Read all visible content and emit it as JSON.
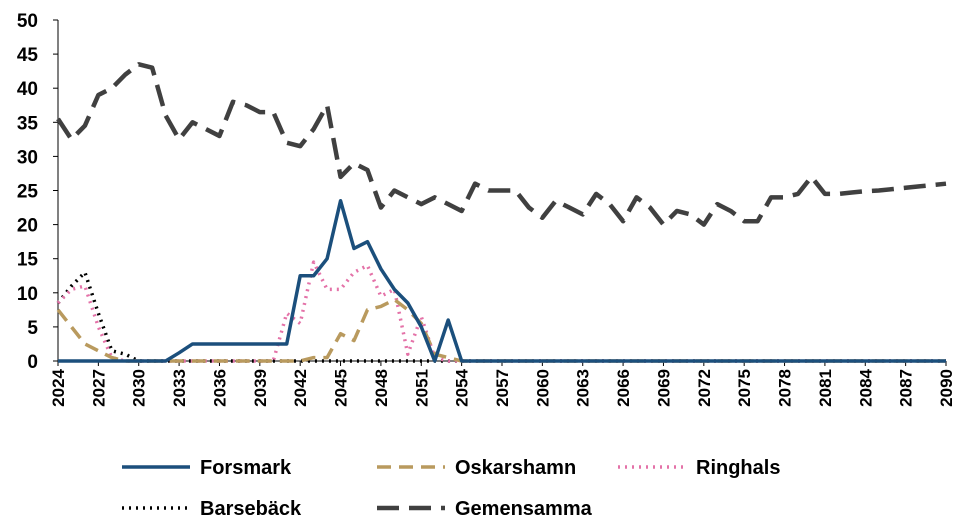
{
  "chart_data": {
    "type": "line",
    "x": [
      2024,
      2025,
      2026,
      2027,
      2028,
      2029,
      2030,
      2031,
      2032,
      2033,
      2034,
      2035,
      2036,
      2037,
      2038,
      2039,
      2040,
      2041,
      2042,
      2043,
      2044,
      2045,
      2046,
      2047,
      2048,
      2049,
      2050,
      2051,
      2052,
      2053,
      2054,
      2055,
      2056,
      2057,
      2058,
      2059,
      2060,
      2061,
      2062,
      2063,
      2064,
      2065,
      2066,
      2067,
      2068,
      2069,
      2070,
      2071,
      2072,
      2073,
      2074,
      2075,
      2076,
      2077,
      2078,
      2079,
      2080,
      2081,
      2082,
      2083,
      2084,
      2085,
      2086,
      2087,
      2088,
      2089,
      2090
    ],
    "xlim": [
      2024,
      2090
    ],
    "xticks": [
      2024,
      2027,
      2030,
      2033,
      2036,
      2039,
      2042,
      2045,
      2048,
      2051,
      2054,
      2057,
      2060,
      2063,
      2066,
      2069,
      2072,
      2075,
      2078,
      2081,
      2084,
      2087,
      2090
    ],
    "ylim": [
      0,
      50
    ],
    "yticks": [
      0,
      5,
      10,
      15,
      20,
      25,
      30,
      35,
      40,
      45,
      50
    ],
    "grid": false,
    "legend": "bottom",
    "series": [
      {
        "name": "Forsmark",
        "color": "#1b4f7c",
        "dash": "solid",
        "values": [
          0,
          0,
          0,
          0,
          0,
          0,
          0,
          0,
          0,
          1.2,
          2.5,
          2.5,
          2.5,
          2.5,
          2.5,
          2.5,
          2.5,
          2.5,
          12.5,
          12.5,
          15,
          23.5,
          16.5,
          17.5,
          13.5,
          10.5,
          8.5,
          5,
          0,
          6,
          0,
          0,
          0,
          0,
          0,
          0,
          0,
          0,
          0,
          0,
          0,
          0,
          0,
          0,
          0,
          0,
          0,
          0,
          0,
          0,
          0,
          0,
          0,
          0,
          0,
          0,
          0,
          0,
          0,
          0,
          0,
          0,
          0,
          0,
          0,
          0,
          0
        ]
      },
      {
        "name": "Oskarshamn",
        "color": "#b99a5e",
        "dash": "dashed",
        "values": [
          7.5,
          5,
          2.5,
          1.5,
          0.5,
          0,
          0,
          0,
          0,
          0,
          0,
          0,
          0,
          0,
          0,
          0,
          0,
          0,
          0,
          0.5,
          0.5,
          4,
          3,
          7.5,
          8,
          9,
          7.5,
          5.5,
          1,
          0.5,
          0,
          0,
          0,
          0,
          0,
          0,
          0,
          0,
          0,
          0,
          0,
          0,
          0,
          0,
          0,
          0,
          0,
          0,
          0,
          0,
          0,
          0,
          0,
          0,
          0,
          0,
          0,
          0,
          0,
          0,
          0,
          0,
          0,
          0,
          0,
          0,
          0
        ]
      },
      {
        "name": "Ringhals",
        "color": "#e472a8",
        "dash": "dotted",
        "values": [
          8.5,
          10.5,
          11,
          5,
          0.5,
          0,
          0,
          0,
          0,
          0,
          0,
          0,
          0,
          0,
          0,
          0,
          0,
          7,
          5.5,
          14.5,
          10.5,
          10.5,
          13,
          14,
          9.5,
          10.5,
          1,
          6.5,
          0.5,
          0,
          0,
          0,
          0,
          0,
          0,
          0,
          0,
          0,
          0,
          0,
          0,
          0,
          0,
          0,
          0,
          0,
          0,
          0,
          0,
          0,
          0,
          0,
          0,
          0,
          0,
          0,
          0,
          0,
          0,
          0,
          0,
          0,
          0,
          0,
          0,
          0,
          0
        ]
      },
      {
        "name": "Barsebäck",
        "color": "#000000",
        "dash": "dotted",
        "values": [
          8.5,
          11,
          13,
          7,
          1.5,
          1,
          0,
          0,
          0,
          0,
          0,
          0,
          0,
          0,
          0,
          0,
          0,
          0,
          0,
          0,
          0,
          0,
          0,
          0,
          0,
          0,
          0,
          0,
          0,
          0,
          0,
          0,
          0,
          0,
          0,
          0,
          0,
          0,
          0,
          0,
          0,
          0,
          0,
          0,
          0,
          0,
          0,
          0,
          0,
          0,
          0,
          0,
          0,
          0,
          0,
          0,
          0,
          0,
          0,
          0,
          0,
          0,
          0,
          0,
          0,
          0,
          0
        ]
      },
      {
        "name": "Gemensamma",
        "color": "#404040",
        "dash": "longdash",
        "values": [
          35.5,
          32.5,
          34.5,
          39,
          40,
          42,
          43.5,
          43,
          36,
          32.5,
          35,
          34,
          33,
          38,
          37.5,
          36.5,
          36.5,
          32,
          31.5,
          34,
          37.5,
          27,
          29,
          28,
          22.5,
          25,
          24,
          23,
          24,
          23,
          22,
          26,
          25,
          25,
          25,
          22.5,
          21,
          23.5,
          22.5,
          21.5,
          24.5,
          23,
          20.5,
          24,
          22.5,
          20,
          22,
          21.5,
          20,
          23,
          22,
          20.5,
          20.5,
          24,
          24,
          24.5,
          27,
          24.5,
          24.5,
          24.7,
          24.9,
          25,
          25.2,
          25.4,
          25.6,
          25.8,
          26
        ]
      }
    ]
  }
}
